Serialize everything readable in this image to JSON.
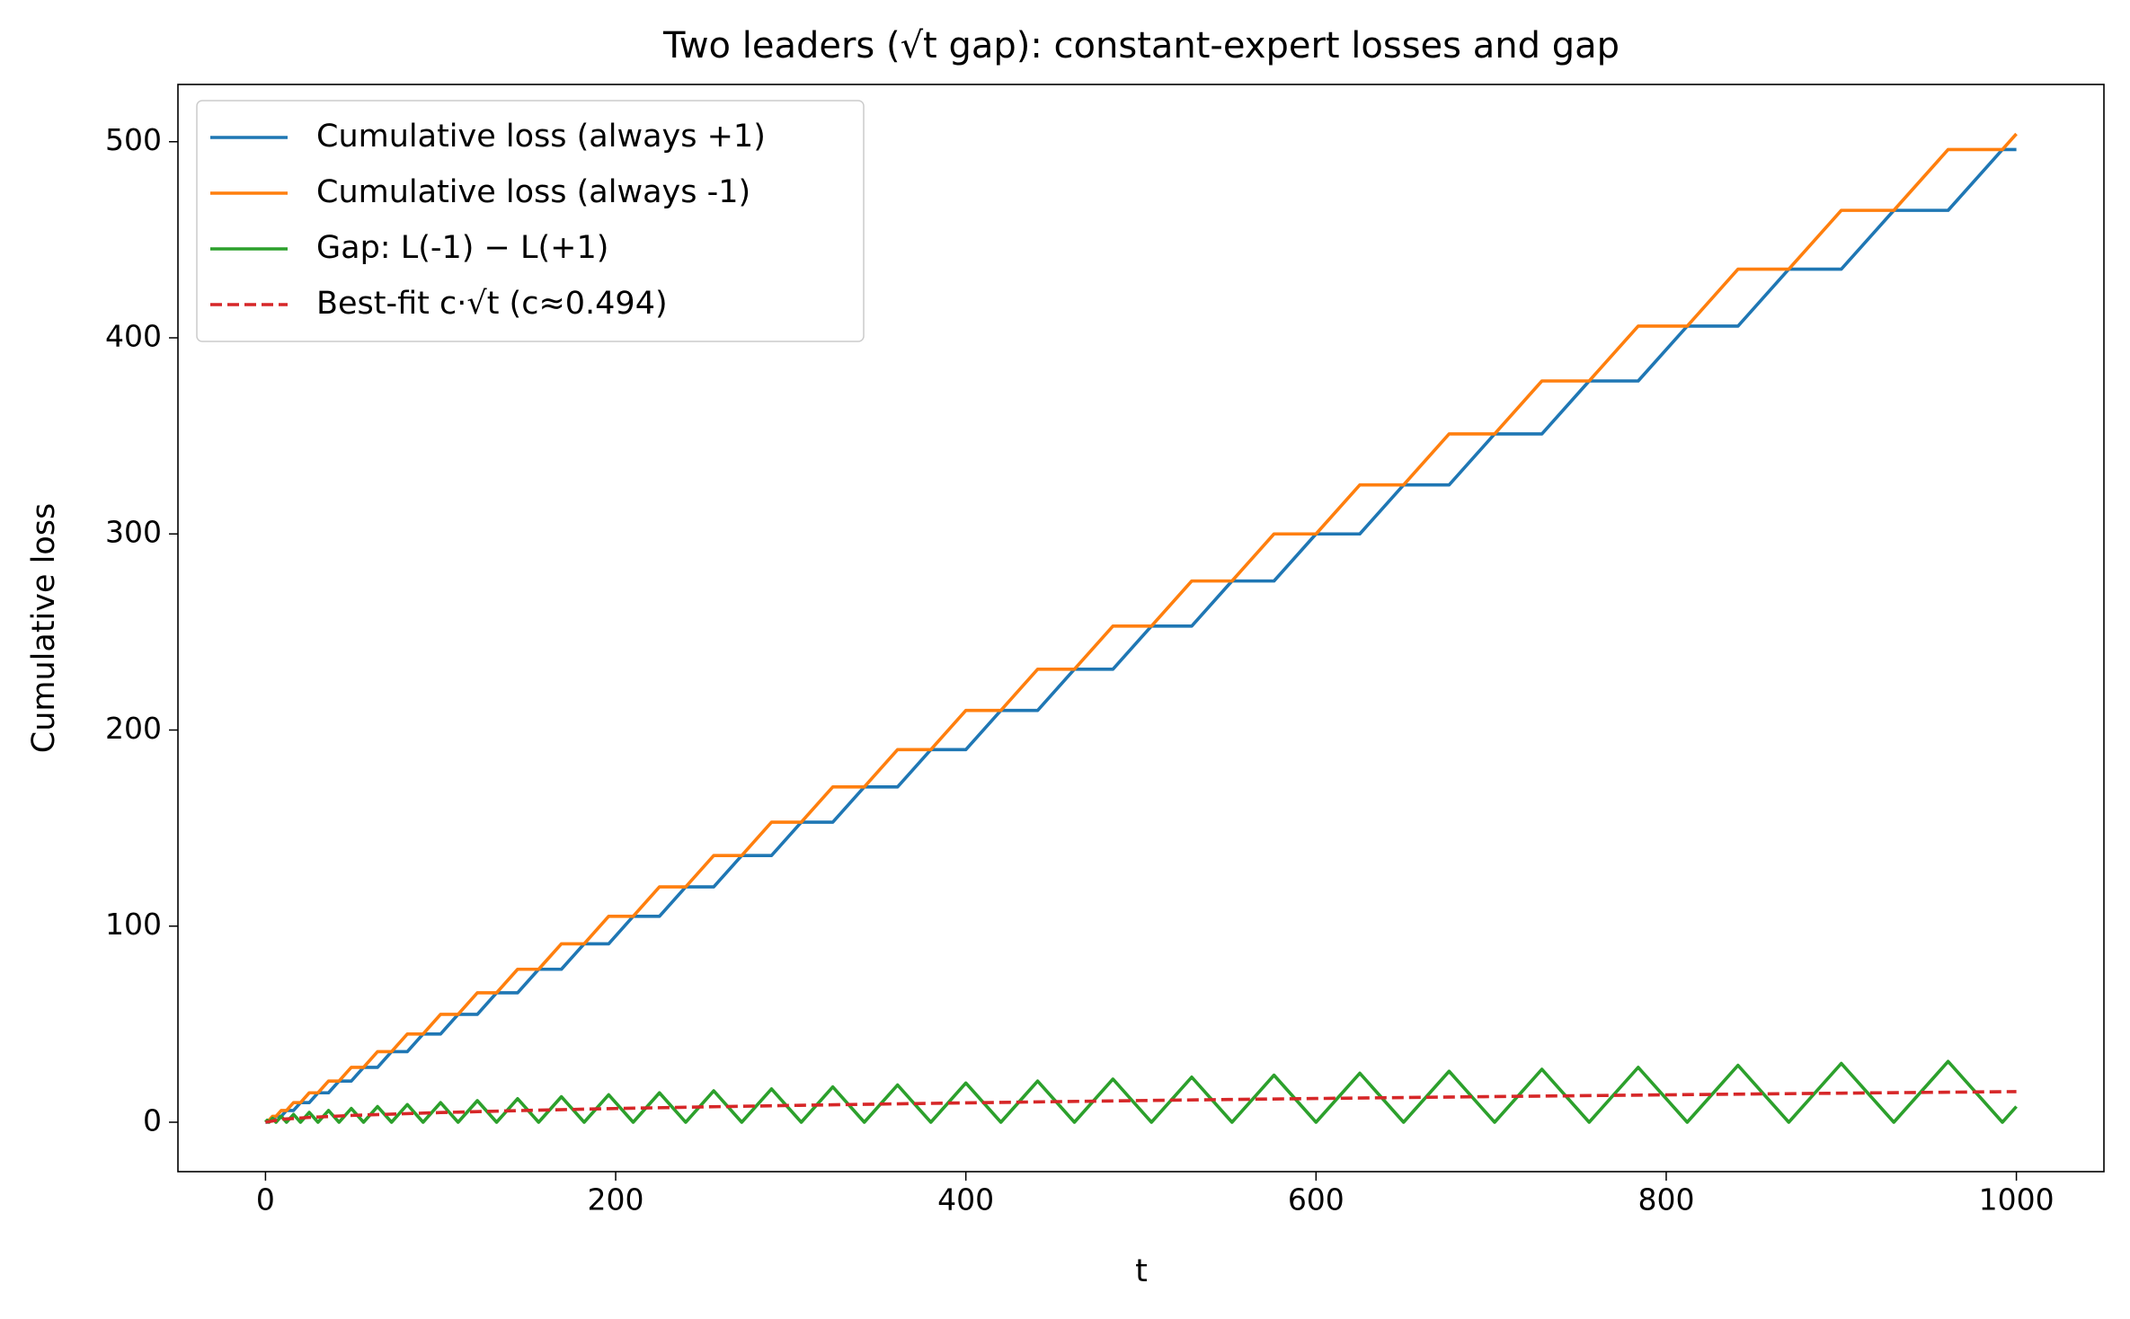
{
  "chart_data": {
    "type": "line",
    "title": "Two leaders (√t gap): constant-expert losses and gap",
    "x_label": "t",
    "y_label": "Cumulative loss",
    "x": [
      0,
      1,
      2,
      4,
      6,
      9,
      12,
      16,
      20,
      25,
      30,
      36,
      42,
      49,
      56,
      64,
      72,
      81,
      90,
      100,
      110,
      121,
      132,
      144,
      156,
      169,
      182,
      196,
      210,
      225,
      240,
      256,
      272,
      289,
      306,
      324,
      342,
      361,
      380,
      400,
      420,
      441,
      462,
      484,
      506,
      529,
      552,
      576,
      600,
      625,
      650,
      676,
      702,
      729,
      756,
      784,
      812,
      841,
      870,
      900,
      930,
      961,
      992,
      1000
    ],
    "series": [
      {
        "name": "Cumulative loss (always +1)",
        "color": "#1f77b4",
        "linestyle": "solid",
        "values": [
          0,
          0,
          1,
          1,
          3,
          3,
          6,
          6,
          10,
          10,
          15,
          15,
          21,
          21,
          28,
          28,
          36,
          36,
          45,
          45,
          55,
          55,
          66,
          66,
          78,
          78,
          91,
          91,
          105,
          105,
          120,
          120,
          136,
          136,
          153,
          153,
          171,
          171,
          190,
          190,
          210,
          210,
          231,
          231,
          253,
          253,
          276,
          276,
          300,
          300,
          325,
          325,
          351,
          351,
          378,
          378,
          406,
          406,
          435,
          435,
          465,
          465,
          496,
          496
        ]
      },
      {
        "name": "Cumulative loss (always -1)",
        "color": "#ff7f0e",
        "linestyle": "solid",
        "values": [
          0,
          1,
          1,
          3,
          3,
          6,
          6,
          10,
          10,
          15,
          15,
          21,
          21,
          28,
          28,
          36,
          36,
          45,
          45,
          55,
          55,
          66,
          66,
          78,
          78,
          91,
          91,
          105,
          105,
          120,
          120,
          136,
          136,
          153,
          153,
          171,
          171,
          190,
          190,
          210,
          210,
          231,
          231,
          253,
          253,
          276,
          276,
          300,
          300,
          325,
          325,
          351,
          351,
          378,
          378,
          406,
          406,
          435,
          435,
          465,
          465,
          496,
          496,
          504
        ]
      },
      {
        "name": "Gap: L(-1) − L(+1)",
        "color": "#2ca02c",
        "linestyle": "solid",
        "values": [
          0,
          1,
          0,
          2,
          0,
          3,
          0,
          4,
          0,
          5,
          0,
          6,
          0,
          7,
          0,
          8,
          0,
          9,
          0,
          10,
          0,
          11,
          0,
          12,
          0,
          13,
          0,
          14,
          0,
          15,
          0,
          16,
          0,
          17,
          0,
          18,
          0,
          19,
          0,
          20,
          0,
          21,
          0,
          22,
          0,
          23,
          0,
          24,
          0,
          25,
          0,
          26,
          0,
          27,
          0,
          28,
          0,
          29,
          0,
          30,
          0,
          31,
          0,
          8
        ]
      },
      {
        "name": "Best-fit c·√t (c≈0.494)",
        "color": "#d62728",
        "linestyle": "dashed",
        "x": [
          0,
          10,
          25,
          50,
          100,
          150,
          200,
          250,
          300,
          350,
          400,
          450,
          500,
          550,
          600,
          650,
          700,
          750,
          800,
          850,
          900,
          950,
          1000
        ],
        "values": [
          0,
          1.56,
          2.47,
          3.49,
          4.94,
          6.05,
          6.99,
          7.81,
          8.56,
          9.24,
          9.88,
          10.48,
          11.05,
          11.59,
          12.1,
          12.59,
          13.07,
          13.53,
          13.97,
          14.4,
          14.82,
          15.23,
          15.62
        ]
      }
    ],
    "xlim": [
      -50,
      1050
    ],
    "ylim": [
      -25.2,
      529.2
    ],
    "xticks": [
      0,
      200,
      400,
      600,
      800,
      1000
    ],
    "yticks": [
      0,
      100,
      200,
      300,
      400,
      500
    ],
    "grid": false,
    "legend": "upper left"
  }
}
